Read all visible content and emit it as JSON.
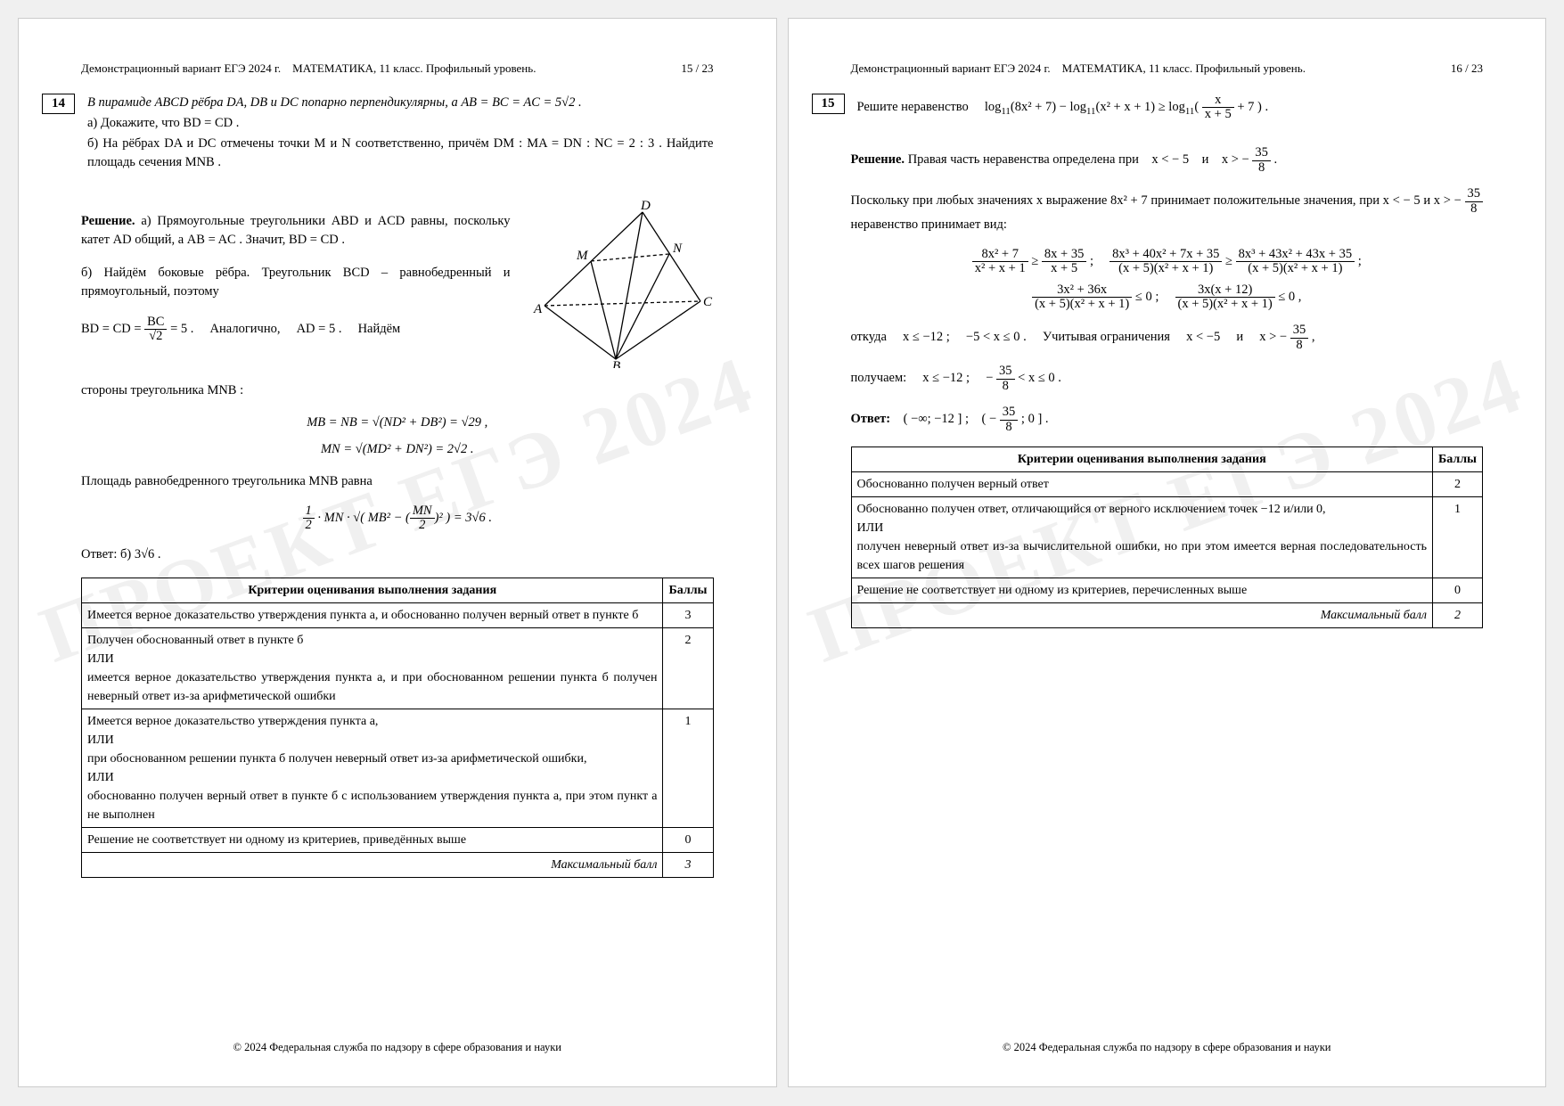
{
  "watermark": "ПРОЕКТ ЕГЭ 2024",
  "footer": "© 2024 Федеральная служба по надзору в сфере образования и науки",
  "runhead": {
    "left": "Демонстрационный вариант ЕГЭ 2024 г. МАТЕМАТИКА, 11 класс. Профильный уровень.",
    "p15": "15 / 23",
    "p16": "16 / 23"
  },
  "task14": {
    "num": "14",
    "stmt1": "В пирамиде ABCD рёбра DA, DB и DC попарно перпендикулярны, а AB = BC = AC = 5√2 .",
    "stmt2": "а) Докажите, что BD = CD .",
    "stmt3": "б) На рёбрах DA и DC отмечены точки M и N соответственно, причём DM : MA = DN : NC = 2 : 3 . Найдите площадь сечения MNB .",
    "sol_label": "Решение.",
    "sol_a": "а) Прямоугольные треугольники ABD и ACD равны, поскольку катет AD общий, а AB = AC . Значит, BD = CD .",
    "sol_b1": "б) Найдём боковые рёбра. Треугольник BCD – равнобедренный и прямоугольный, поэтому",
    "sol_b2_html": "BD = CD = <span class='frac'><span class='n'>BC</span><span class='d'>√2</span></span> = 5 .  Аналогично,  AD = 5 .  Найдём",
    "sol_b3": "стороны треугольника MNB :",
    "sol_eq1": "MB = NB = √(ND² + DB²) = √29 ,",
    "sol_eq2": "MN = √(MD² + DN²) = 2√2 .",
    "sol_b4": "Площадь равнобедренного треугольника MNB равна",
    "sol_eq3_html": "<span class='frac'><span class='n'>1</span><span class='d'>2</span></span> · MN · √( MB² − (<span class='frac'><span class='n'>MN</span><span class='d'>2</span></span>)² ) = 3√6 .",
    "ans": "Ответ: б) 3√6 .",
    "rubric_header": "Критерии оценивания выполнения задания",
    "score_header": "Баллы",
    "criteria": [
      {
        "text": "Имеется верное доказательство утверждения пункта а, и обоснованно получен верный ответ в пункте б",
        "score": "3"
      },
      {
        "text": "Получен обоснованный ответ в пункте б\nИЛИ\nимеется верное доказательство утверждения пункта а, и при обоснованном решении пункта б получен неверный ответ из-за арифметической ошибки",
        "score": "2"
      },
      {
        "text": "Имеется верное доказательство утверждения пункта а,\nИЛИ\nпри обоснованном решении пункта б получен неверный ответ из-за арифметической ошибки,\nИЛИ\nобоснованно получен верный ответ в пункте б с использованием утверждения пункта а, при этом пункт а не выполнен",
        "score": "1"
      },
      {
        "text": "Решение не соответствует ни одному из критериев, приведённых выше",
        "score": "0"
      }
    ],
    "max_label": "Максимальный балл",
    "max_score": "3",
    "pyramid": {
      "labels": {
        "A": "A",
        "B": "B",
        "C": "C",
        "D": "D",
        "M": "M",
        "N": "N"
      }
    }
  },
  "task15": {
    "num": "15",
    "stmt_html": "Решите неравенство  log<sub>11</sub>(8x² + 7) − log<sub>11</sub>(x² + x + 1) ≥ log<sub>11</sub>( <span class='frac'><span class='n'>x</span><span class='d'>x + 5</span></span> + 7 ) .",
    "sol_label": "Решение.",
    "sol_p1_html": "Правая часть неравенства определена при x < − 5 и x > − <span class='frac'><span class='n'>35</span><span class='d'>8</span></span> .",
    "sol_p2_html": "Поскольку при любых значениях x выражение 8x² + 7 принимает положительные значения, при x < − 5 и x > − <span class='frac'><span class='n'>35</span><span class='d'>8</span></span> неравенство принимает вид:",
    "chain1_html": "<span class='frac'><span class='n'>8x² + 7</span><span class='d'>x² + x + 1</span></span> ≥ <span class='frac'><span class='n'>8x + 35</span><span class='d'>x + 5</span></span> ;  <span class='frac'><span class='n'>8x³ + 40x² + 7x + 35</span><span class='d'>(x + 5)(x² + x + 1)</span></span> ≥ <span class='frac'><span class='n'>8x³ + 43x² + 43x + 35</span><span class='d'>(x + 5)(x² + x + 1)</span></span> ;",
    "chain2_html": "<span class='frac'><span class='n'>3x² + 36x</span><span class='d'>(x + 5)(x² + x + 1)</span></span> ≤ 0 ;  <span class='frac'><span class='n'>3x(x + 12)</span><span class='d'>(x + 5)(x² + x + 1)</span></span> ≤ 0 ,",
    "sol_p3_html": "откуда  x ≤ −12 ;  −5 < x ≤ 0 .  Учитывая ограничения  x < −5  и  x > − <span class='frac'><span class='n'>35</span><span class='d'>8</span></span> ,",
    "sol_p4_html": "получаем:  x ≤ −12 ;  − <span class='frac'><span class='n'>35</span><span class='d'>8</span></span> < x ≤ 0 .",
    "ans_html": "<b>Ответ:</b> ( −∞; −12 ] ; ( − <span class='frac'><span class='n'>35</span><span class='d'>8</span></span> ; 0 ] .",
    "rubric_header": "Критерии оценивания выполнения задания",
    "score_header": "Баллы",
    "criteria": [
      {
        "text": "Обоснованно получен верный ответ",
        "score": "2"
      },
      {
        "text": "Обоснованно получен ответ, отличающийся от верного исключением точек −12 и/или 0,\nИЛИ\nполучен неверный ответ из-за вычислительной ошибки, но при этом имеется верная последовательность всех шагов решения",
        "score": "1"
      },
      {
        "text": "Решение не соответствует ни одному из критериев, перечисленных выше",
        "score": "0"
      }
    ],
    "max_label": "Максимальный балл",
    "max_score": "2"
  }
}
